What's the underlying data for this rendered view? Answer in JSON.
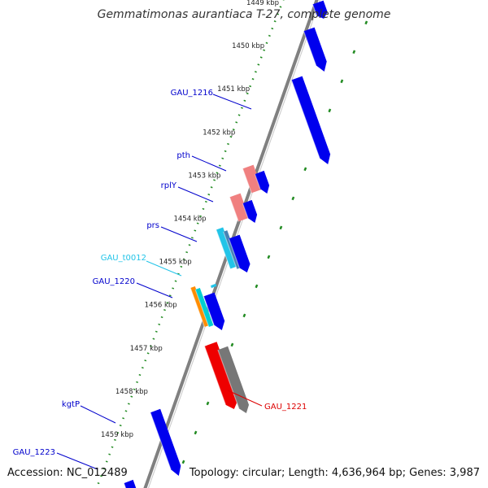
{
  "title": "Gemmatimonas aurantiaca T-27, complete genome",
  "footer": {
    "accession": "Accession: NC_012489",
    "summary": "Topology: circular; Length: 4,636,964 bp; Genes: 3,987"
  },
  "scale": {
    "labels": [
      "1449 kbp",
      "1450 kbp",
      "1451 kbp",
      "1452 kbp",
      "1453 kbp",
      "1454 kbp",
      "1455 kbp",
      "1456 kbp",
      "1457 kbp",
      "1458 kbp",
      "1459 kbp"
    ],
    "color": "#228b22"
  },
  "colors": {
    "cds": "#0000ee",
    "rrna": "#f08080",
    "trna": "#22c4e8",
    "trna_ring": "#4682b4",
    "ncrna": "#ff8c00",
    "rrna_other": "#00ced1",
    "highlight": "#ee0000",
    "pseudo": "#777777",
    "backbone": "#808080"
  },
  "gene_labels": [
    {
      "name": "GAU_1216",
      "color": "#0000cc"
    },
    {
      "name": "pth",
      "color": "#0000cc"
    },
    {
      "name": "rplY",
      "color": "#0000cc"
    },
    {
      "name": "prs",
      "color": "#0000cc"
    },
    {
      "name": "GAU_t0012",
      "color": "#22c4e8"
    },
    {
      "name": "GAU_1220",
      "color": "#0000cc"
    },
    {
      "name": "kgtP",
      "color": "#0000cc"
    },
    {
      "name": "GAU_1223",
      "color": "#0000cc"
    },
    {
      "name": "GAU_1221",
      "color": "#dd0000"
    }
  ]
}
